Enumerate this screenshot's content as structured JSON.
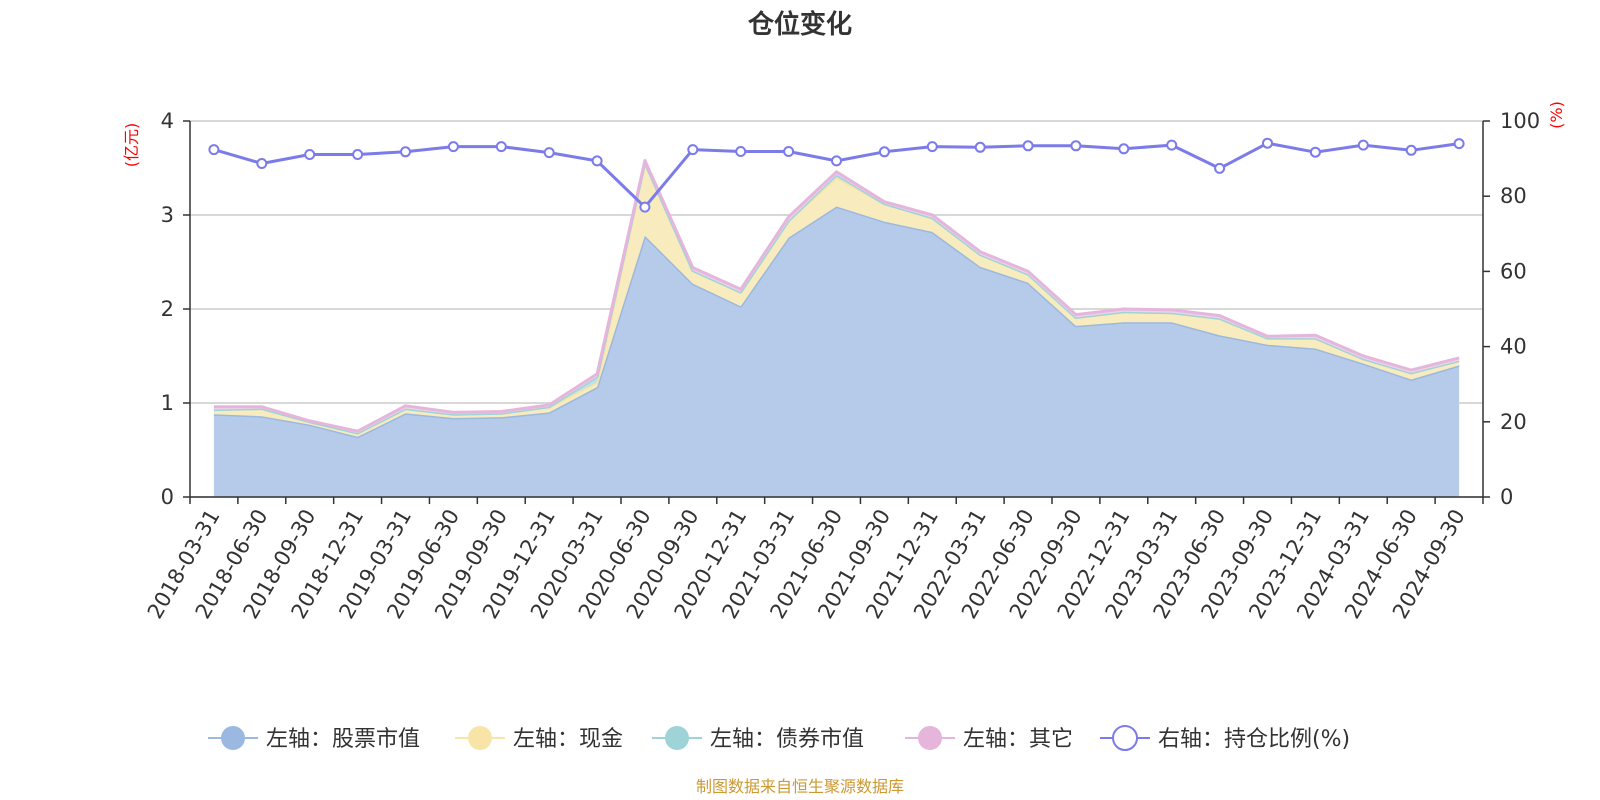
{
  "chart_data": {
    "type": "area",
    "title": "仓位变化",
    "left_axis_unit": "(亿元)",
    "right_axis_unit": "(%)",
    "ylim_left": [
      0,
      4
    ],
    "ylim_right": [
      0,
      100
    ],
    "yticks_left": [
      "0",
      "1",
      "2",
      "3",
      "4"
    ],
    "yticks_right": [
      "0",
      "20",
      "40",
      "60",
      "80",
      "100"
    ],
    "grid": true,
    "legend_position": "bottom",
    "categories": [
      "2018-03-31",
      "2018-06-30",
      "2018-09-30",
      "2018-12-31",
      "2019-03-31",
      "2019-06-30",
      "2019-09-30",
      "2019-12-31",
      "2020-03-31",
      "2020-06-30",
      "2020-09-30",
      "2020-12-31",
      "2021-03-31",
      "2021-06-30",
      "2021-09-30",
      "2021-12-31",
      "2022-03-31",
      "2022-06-30",
      "2022-09-30",
      "2022-12-31",
      "2023-03-31",
      "2023-06-30",
      "2023-09-30",
      "2023-12-31",
      "2024-03-31",
      "2024-06-30",
      "2024-09-30"
    ],
    "series": [
      {
        "name": "左轴：股票市值",
        "axis": "left",
        "kind": "area",
        "color": "#9bb8e0",
        "fill": "#b6cbea",
        "values": [
          0.88,
          0.86,
          0.77,
          0.64,
          0.89,
          0.84,
          0.85,
          0.9,
          1.17,
          2.78,
          2.27,
          2.03,
          2.76,
          3.09,
          2.93,
          2.82,
          2.45,
          2.28,
          1.82,
          1.86,
          1.86,
          1.72,
          1.62,
          1.58,
          1.42,
          1.25,
          1.4
        ]
      },
      {
        "name": "左轴：现金",
        "axis": "left",
        "kind": "area",
        "color": "#f7e4a6",
        "fill": "#f8ebbd",
        "values": [
          0.05,
          0.08,
          0.03,
          0.04,
          0.05,
          0.04,
          0.04,
          0.06,
          0.05,
          0.78,
          0.14,
          0.15,
          0.18,
          0.31,
          0.19,
          0.15,
          0.13,
          0.09,
          0.09,
          0.11,
          0.1,
          0.18,
          0.07,
          0.11,
          0.05,
          0.07,
          0.05
        ]
      },
      {
        "name": "左轴：债券市值",
        "axis": "left",
        "kind": "area",
        "color": "#9ed4d8",
        "fill": "#bfe2e2",
        "values": [
          0.0,
          0.0,
          0.0,
          0.0,
          0.0,
          0.0,
          0.0,
          0.0,
          0.06,
          0.0,
          0.0,
          0.0,
          0.0,
          0.03,
          0.0,
          0.0,
          0.0,
          0.0,
          0.0,
          0.0,
          0.0,
          0.0,
          0.0,
          0.0,
          0.0,
          0.0,
          0.0
        ]
      },
      {
        "name": "左轴：其它",
        "axis": "left",
        "kind": "area",
        "color": "#e6b5dc",
        "fill": "#efd3ea",
        "values": [
          0.03,
          0.02,
          0.01,
          0.02,
          0.03,
          0.02,
          0.02,
          0.02,
          0.03,
          0.02,
          0.03,
          0.03,
          0.04,
          0.03,
          0.02,
          0.03,
          0.03,
          0.03,
          0.03,
          0.03,
          0.03,
          0.03,
          0.02,
          0.03,
          0.03,
          0.03,
          0.03
        ]
      },
      {
        "name": "右轴：持仓比例(%)",
        "axis": "right",
        "kind": "line",
        "color": "#7b7bea",
        "values": [
          92.4,
          88.7,
          91.1,
          91.1,
          91.8,
          93.2,
          93.2,
          91.6,
          89.4,
          77.1,
          92.4,
          91.9,
          91.9,
          89.4,
          91.8,
          93.2,
          93.0,
          93.4,
          93.4,
          92.6,
          93.6,
          87.4,
          94.1,
          91.7,
          93.6,
          92.2,
          94.0
        ]
      }
    ]
  },
  "footer": {
    "source": "制图数据来自恒生聚源数据库"
  }
}
